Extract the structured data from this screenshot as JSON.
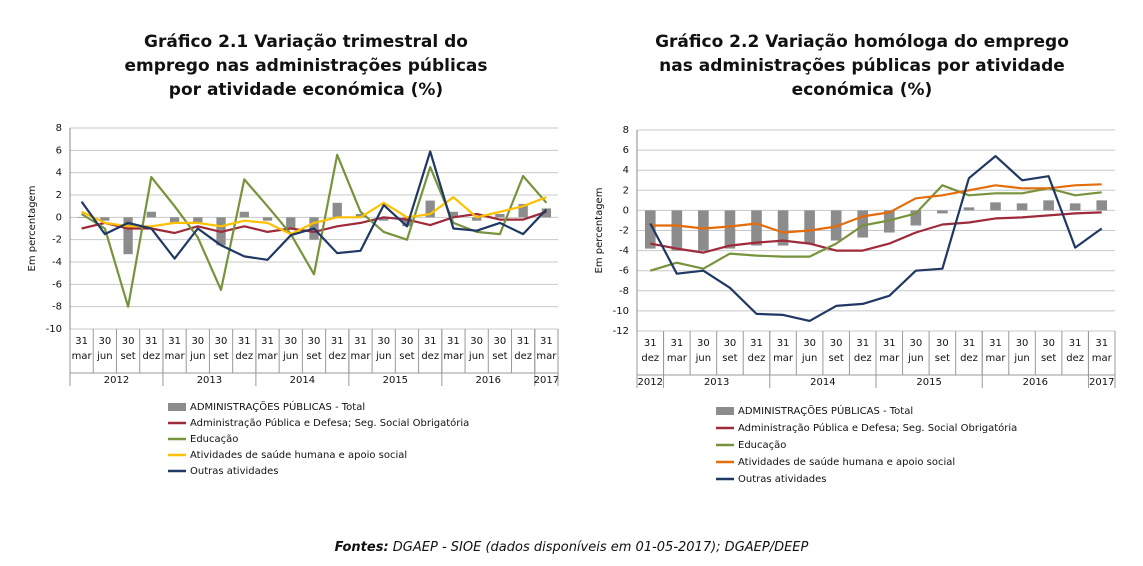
{
  "chart_data": [
    {
      "type": "combo",
      "title": "Gráfico 2.1 Variação trimestral do emprego nas administrações públicas por atividade económica (%)",
      "y_label": "Em percentagem",
      "categories": [
        [
          "31",
          "mar"
        ],
        [
          "30",
          "jun"
        ],
        [
          "30",
          "set"
        ],
        [
          "31",
          "dez"
        ],
        [
          "31",
          "mar"
        ],
        [
          "30",
          "jun"
        ],
        [
          "30",
          "set"
        ],
        [
          "31",
          "dez"
        ],
        [
          "31",
          "mar"
        ],
        [
          "30",
          "jun"
        ],
        [
          "30",
          "set"
        ],
        [
          "31",
          "dez"
        ],
        [
          "31",
          "mar"
        ],
        [
          "30",
          "jun"
        ],
        [
          "30",
          "set"
        ],
        [
          "31",
          "dez"
        ],
        [
          "31",
          "mar"
        ],
        [
          "30",
          "jun"
        ],
        [
          "30",
          "set"
        ],
        [
          "31",
          "dez"
        ],
        [
          "31",
          "mar"
        ]
      ],
      "groups": [
        {
          "label": "2012",
          "count": 4
        },
        {
          "label": "2013",
          "count": 4
        },
        {
          "label": "2014",
          "count": 4
        },
        {
          "label": "2015",
          "count": 4
        },
        {
          "label": "2016",
          "count": 4
        },
        {
          "label": "2017",
          "count": 1
        }
      ],
      "ylim": [
        -10,
        8
      ],
      "yticks": [
        -10,
        -8,
        -6,
        -4,
        -2,
        0,
        2,
        4,
        6,
        8
      ],
      "grid": true,
      "series": [
        {
          "name": "ADMINISTRAÇÕES PÚBLICAS - Total",
          "type": "bar",
          "color": "#8c8c8c",
          "values": [
            0.0,
            -0.3,
            -3.3,
            0.5,
            -0.5,
            -0.5,
            -2.5,
            0.5,
            -0.3,
            -1.0,
            -2.0,
            1.3,
            0.3,
            -0.3,
            -0.8,
            1.5,
            0.5,
            -0.3,
            0.3,
            1.2,
            0.8
          ]
        },
        {
          "name": "Administração Pública e Defesa; Seg. Social Obrigatória",
          "type": "line",
          "color": "#9e2a3a",
          "values": [
            -1.0,
            -0.5,
            -1.0,
            -1.0,
            -1.4,
            -0.8,
            -1.3,
            -0.8,
            -1.3,
            -1.0,
            -1.3,
            -0.8,
            -0.5,
            0.0,
            -0.2,
            -0.7,
            0.0,
            0.3,
            -0.2,
            -0.2,
            0.5
          ]
        },
        {
          "name": "Educação",
          "type": "line",
          "color": "#77933c",
          "values": [
            0.3,
            -1.0,
            -8.0,
            3.6,
            1.0,
            -1.8,
            -6.5,
            3.4,
            1.0,
            -1.5,
            -5.1,
            5.6,
            0.5,
            -1.3,
            -2.0,
            4.5,
            -0.5,
            -1.3,
            -1.5,
            3.7,
            1.3
          ]
        },
        {
          "name": "Atividades de saúde humana e apoio social",
          "type": "line",
          "color": "#ffc000",
          "values": [
            0.5,
            -0.5,
            -0.8,
            -0.8,
            -0.5,
            -0.5,
            -0.8,
            -0.3,
            -0.5,
            -1.5,
            -0.5,
            0.0,
            0.0,
            1.3,
            0.0,
            0.3,
            1.8,
            0.0,
            0.5,
            1.0,
            1.8
          ]
        },
        {
          "name": "Outras atividades",
          "type": "line",
          "color": "#1f3864",
          "values": [
            1.4,
            -1.5,
            -0.5,
            -1.0,
            -3.7,
            -1.0,
            -2.5,
            -3.5,
            -3.8,
            -1.6,
            -1.0,
            -3.2,
            -3.0,
            1.1,
            -0.8,
            5.9,
            -1.0,
            -1.2,
            -0.5,
            -1.5,
            0.7
          ]
        }
      ]
    },
    {
      "type": "combo",
      "title": "Gráfico 2.2 Variação homóloga do emprego nas administrações públicas por atividade económica (%)",
      "y_label": "Em percentagem",
      "categories": [
        [
          "31",
          "dez"
        ],
        [
          "31",
          "mar"
        ],
        [
          "30",
          "jun"
        ],
        [
          "30",
          "set"
        ],
        [
          "31",
          "dez"
        ],
        [
          "31",
          "mar"
        ],
        [
          "30",
          "jun"
        ],
        [
          "30",
          "set"
        ],
        [
          "31",
          "dez"
        ],
        [
          "31",
          "mar"
        ],
        [
          "30",
          "jun"
        ],
        [
          "30",
          "set"
        ],
        [
          "31",
          "dez"
        ],
        [
          "31",
          "mar"
        ],
        [
          "30",
          "jun"
        ],
        [
          "30",
          "set"
        ],
        [
          "31",
          "dez"
        ],
        [
          "31",
          "mar"
        ]
      ],
      "groups": [
        {
          "label": "2012",
          "count": 1
        },
        {
          "label": "2013",
          "count": 4
        },
        {
          "label": "2014",
          "count": 4
        },
        {
          "label": "2015",
          "count": 4
        },
        {
          "label": "2016",
          "count": 4
        },
        {
          "label": "2017",
          "count": 1
        }
      ],
      "ylim": [
        -12,
        8
      ],
      "yticks": [
        -12,
        -10,
        -8,
        -6,
        -4,
        -2,
        0,
        2,
        4,
        6,
        8
      ],
      "grid": true,
      "series": [
        {
          "name": "ADMINISTRAÇÕES PÚBLICAS - Total",
          "type": "bar",
          "color": "#8c8c8c",
          "values": [
            -3.8,
            -4.0,
            -4.0,
            -3.8,
            -3.5,
            -3.5,
            -3.3,
            -3.0,
            -2.7,
            -2.2,
            -1.5,
            -0.3,
            0.3,
            0.8,
            0.7,
            1.0,
            0.7,
            1.0
          ]
        },
        {
          "name": "Administração Pública e Defesa; Seg. Social Obrigatória",
          "type": "line",
          "color": "#9e2a3a",
          "values": [
            -3.3,
            -3.8,
            -4.2,
            -3.5,
            -3.2,
            -3.0,
            -3.3,
            -4.0,
            -4.0,
            -3.3,
            -2.2,
            -1.4,
            -1.2,
            -0.8,
            -0.7,
            -0.5,
            -0.3,
            -0.2
          ]
        },
        {
          "name": "Educação",
          "type": "line",
          "color": "#77933c",
          "values": [
            -6.0,
            -5.2,
            -5.8,
            -4.3,
            -4.5,
            -4.6,
            -4.6,
            -3.3,
            -1.5,
            -1.0,
            -0.3,
            2.5,
            1.5,
            1.7,
            1.7,
            2.2,
            1.5,
            1.8
          ]
        },
        {
          "name": "Atividades de saúde humana e apoio social",
          "type": "line",
          "color": "#e46c0a",
          "values": [
            -1.5,
            -1.5,
            -1.8,
            -1.6,
            -1.3,
            -2.2,
            -2.0,
            -1.6,
            -0.6,
            -0.2,
            1.2,
            1.5,
            2.0,
            2.5,
            2.2,
            2.2,
            2.5,
            2.6
          ]
        },
        {
          "name": "Outras atividades",
          "type": "line",
          "color": "#1f3864",
          "values": [
            -1.3,
            -6.3,
            -6.0,
            -7.7,
            -10.3,
            -10.4,
            -11.0,
            -9.5,
            -9.3,
            -8.5,
            -6.0,
            -5.8,
            3.2,
            5.4,
            3.0,
            3.4,
            -3.7,
            -1.8
          ]
        }
      ]
    }
  ],
  "source": {
    "label": "Fontes:",
    "text": "DGAEP - SIOE (dados disponíveis em 01-05-2017); DGAEP/DEEP"
  }
}
